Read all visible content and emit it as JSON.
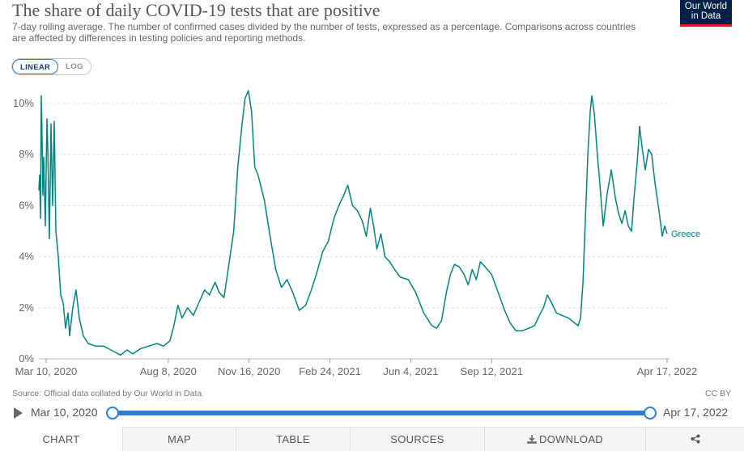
{
  "header": {
    "title": "The share of daily COVID-19 tests that are positive",
    "subtitle": "7-day rolling average. The number of confirmed cases divided by the number of tests, expressed as a percentage. Comparisons across countries are affected by differences in testing policies and reporting methods.",
    "logo_line1": "Our World",
    "logo_line2": "in Data"
  },
  "scale_toggle": {
    "linear_label": "LINEAR",
    "log_label": "LOG",
    "selected": "linear"
  },
  "chart_data": {
    "type": "line",
    "title": "The share of daily COVID-19 tests that are positive",
    "xlabel": "",
    "ylabel": "",
    "x_range": [
      "2020-03-01",
      "2022-04-20"
    ],
    "ylim": [
      0,
      10
    ],
    "y_ticks": [
      "0%",
      "2%",
      "4%",
      "6%",
      "8%",
      "10%"
    ],
    "y_tick_values": [
      0,
      2,
      4,
      6,
      8,
      10
    ],
    "x_ticks": [
      {
        "date": "2020-03-10",
        "label": "Mar 10, 2020"
      },
      {
        "date": "2020-08-08",
        "label": "Aug 8, 2020"
      },
      {
        "date": "2020-11-16",
        "label": "Nov 16, 2020"
      },
      {
        "date": "2021-02-24",
        "label": "Feb 24, 2021"
      },
      {
        "date": "2021-06-04",
        "label": "Jun 4, 2021"
      },
      {
        "date": "2021-09-12",
        "label": "Sep 12, 2021"
      },
      {
        "date": "2022-04-17",
        "label": "Apr 17, 2022"
      }
    ],
    "grid": "horizontal-dashed",
    "series": [
      {
        "name": "Greece",
        "color": "#00847e",
        "points": [
          [
            "2020-03-01",
            6.6
          ],
          [
            "2020-03-02",
            7.2
          ],
          [
            "2020-03-03",
            5.5
          ],
          [
            "2020-03-04",
            10.3
          ],
          [
            "2020-03-05",
            8.6
          ],
          [
            "2020-03-06",
            6.4
          ],
          [
            "2020-03-07",
            7.9
          ],
          [
            "2020-03-09",
            5.2
          ],
          [
            "2020-03-11",
            9.4
          ],
          [
            "2020-03-12",
            8.3
          ],
          [
            "2020-03-14",
            4.7
          ],
          [
            "2020-03-16",
            9.2
          ],
          [
            "2020-03-18",
            6.0
          ],
          [
            "2020-03-20",
            9.3
          ],
          [
            "2020-03-22",
            5.0
          ],
          [
            "2020-03-25",
            4.0
          ],
          [
            "2020-03-28",
            2.5
          ],
          [
            "2020-03-31",
            2.2
          ],
          [
            "2020-04-03",
            1.2
          ],
          [
            "2020-04-06",
            1.8
          ],
          [
            "2020-04-08",
            0.9
          ],
          [
            "2020-04-12",
            2.0
          ],
          [
            "2020-04-16",
            2.7
          ],
          [
            "2020-04-20",
            1.6
          ],
          [
            "2020-04-25",
            0.9
          ],
          [
            "2020-05-01",
            0.6
          ],
          [
            "2020-05-10",
            0.5
          ],
          [
            "2020-05-20",
            0.5
          ],
          [
            "2020-06-01",
            0.3
          ],
          [
            "2020-06-10",
            0.15
          ],
          [
            "2020-06-18",
            0.35
          ],
          [
            "2020-06-25",
            0.2
          ],
          [
            "2020-07-05",
            0.4
          ],
          [
            "2020-07-15",
            0.5
          ],
          [
            "2020-07-25",
            0.6
          ],
          [
            "2020-08-02",
            0.5
          ],
          [
            "2020-08-10",
            0.7
          ],
          [
            "2020-08-15",
            1.3
          ],
          [
            "2020-08-20",
            2.1
          ],
          [
            "2020-08-25",
            1.6
          ],
          [
            "2020-09-01",
            2.0
          ],
          [
            "2020-09-08",
            1.7
          ],
          [
            "2020-09-15",
            2.2
          ],
          [
            "2020-09-22",
            2.7
          ],
          [
            "2020-09-28",
            2.5
          ],
          [
            "2020-10-05",
            3.0
          ],
          [
            "2020-10-10",
            2.6
          ],
          [
            "2020-10-16",
            2.4
          ],
          [
            "2020-10-22",
            3.7
          ],
          [
            "2020-10-28",
            5.0
          ],
          [
            "2020-11-02",
            7.5
          ],
          [
            "2020-11-07",
            9.1
          ],
          [
            "2020-11-11",
            10.2
          ],
          [
            "2020-11-15",
            10.5
          ],
          [
            "2020-11-19",
            9.7
          ],
          [
            "2020-11-23",
            7.5
          ],
          [
            "2020-11-27",
            7.2
          ],
          [
            "2020-12-05",
            6.2
          ],
          [
            "2020-12-12",
            4.8
          ],
          [
            "2020-12-19",
            3.5
          ],
          [
            "2020-12-26",
            2.8
          ],
          [
            "2021-01-02",
            3.1
          ],
          [
            "2021-01-09",
            2.6
          ],
          [
            "2021-01-17",
            1.9
          ],
          [
            "2021-01-25",
            2.1
          ],
          [
            "2021-02-01",
            2.7
          ],
          [
            "2021-02-08",
            3.4
          ],
          [
            "2021-02-15",
            4.2
          ],
          [
            "2021-02-22",
            4.6
          ],
          [
            "2021-03-01",
            5.5
          ],
          [
            "2021-03-07",
            6.0
          ],
          [
            "2021-03-13",
            6.4
          ],
          [
            "2021-03-18",
            6.8
          ],
          [
            "2021-03-24",
            6.0
          ],
          [
            "2021-03-30",
            5.8
          ],
          [
            "2021-04-05",
            5.4
          ],
          [
            "2021-04-10",
            4.8
          ],
          [
            "2021-04-15",
            5.9
          ],
          [
            "2021-04-19",
            5.2
          ],
          [
            "2021-04-23",
            4.3
          ],
          [
            "2021-04-28",
            4.9
          ],
          [
            "2021-05-03",
            4.0
          ],
          [
            "2021-05-09",
            3.8
          ],
          [
            "2021-05-15",
            3.5
          ],
          [
            "2021-05-22",
            3.2
          ],
          [
            "2021-06-01",
            3.1
          ],
          [
            "2021-06-10",
            2.6
          ],
          [
            "2021-06-20",
            1.8
          ],
          [
            "2021-06-30",
            1.3
          ],
          [
            "2021-07-06",
            1.2
          ],
          [
            "2021-07-12",
            1.5
          ],
          [
            "2021-07-18",
            2.6
          ],
          [
            "2021-07-23",
            3.3
          ],
          [
            "2021-07-28",
            3.7
          ],
          [
            "2021-08-03",
            3.6
          ],
          [
            "2021-08-09",
            3.3
          ],
          [
            "2021-08-14",
            2.9
          ],
          [
            "2021-08-19",
            3.5
          ],
          [
            "2021-08-24",
            3.1
          ],
          [
            "2021-08-29",
            3.8
          ],
          [
            "2021-09-04",
            3.6
          ],
          [
            "2021-09-12",
            3.3
          ],
          [
            "2021-09-20",
            2.6
          ],
          [
            "2021-09-28",
            1.9
          ],
          [
            "2021-10-05",
            1.4
          ],
          [
            "2021-10-12",
            1.1
          ],
          [
            "2021-10-20",
            1.1
          ],
          [
            "2021-10-28",
            1.2
          ],
          [
            "2021-11-04",
            1.3
          ],
          [
            "2021-11-10",
            1.7
          ],
          [
            "2021-11-15",
            2.0
          ],
          [
            "2021-11-20",
            2.5
          ],
          [
            "2021-11-25",
            2.2
          ],
          [
            "2021-12-01",
            1.8
          ],
          [
            "2021-12-08",
            1.7
          ],
          [
            "2021-12-16",
            1.6
          ],
          [
            "2021-12-24",
            1.4
          ],
          [
            "2021-12-28",
            1.3
          ],
          [
            "2021-12-31",
            1.6
          ],
          [
            "2022-01-03",
            3.0
          ],
          [
            "2022-01-06",
            5.5
          ],
          [
            "2022-01-09",
            8.0
          ],
          [
            "2022-01-12",
            9.7
          ],
          [
            "2022-01-14",
            10.3
          ],
          [
            "2022-01-17",
            9.6
          ],
          [
            "2022-01-21",
            7.9
          ],
          [
            "2022-01-24",
            6.8
          ],
          [
            "2022-01-28",
            5.2
          ],
          [
            "2022-02-02",
            6.5
          ],
          [
            "2022-02-07",
            7.4
          ],
          [
            "2022-02-12",
            6.3
          ],
          [
            "2022-02-16",
            5.7
          ],
          [
            "2022-02-20",
            5.3
          ],
          [
            "2022-02-24",
            5.8
          ],
          [
            "2022-02-28",
            5.2
          ],
          [
            "2022-03-04",
            5.0
          ],
          [
            "2022-03-07",
            6.3
          ],
          [
            "2022-03-11",
            7.7
          ],
          [
            "2022-03-14",
            9.1
          ],
          [
            "2022-03-17",
            8.3
          ],
          [
            "2022-03-21",
            7.4
          ],
          [
            "2022-03-25",
            8.2
          ],
          [
            "2022-03-29",
            8.0
          ],
          [
            "2022-04-02",
            6.9
          ],
          [
            "2022-04-07",
            5.8
          ],
          [
            "2022-04-11",
            4.8
          ],
          [
            "2022-04-14",
            5.2
          ],
          [
            "2022-04-17",
            4.9
          ]
        ]
      }
    ],
    "series_label": "Greece"
  },
  "footer": {
    "source": "Source: Official data collated by Our World in Data",
    "license": "CC BY"
  },
  "timeline": {
    "start_label": "Mar 10, 2020",
    "end_label": "Apr 17, 2022"
  },
  "tabs": [
    {
      "label": "CHART",
      "active": true
    },
    {
      "label": "MAP",
      "active": false
    },
    {
      "label": "TABLE",
      "active": false
    },
    {
      "label": "SOURCES",
      "active": false
    },
    {
      "label": "DOWNLOAD",
      "active": false
    },
    {
      "label": "share",
      "icon": "share-icon",
      "active": false
    }
  ]
}
